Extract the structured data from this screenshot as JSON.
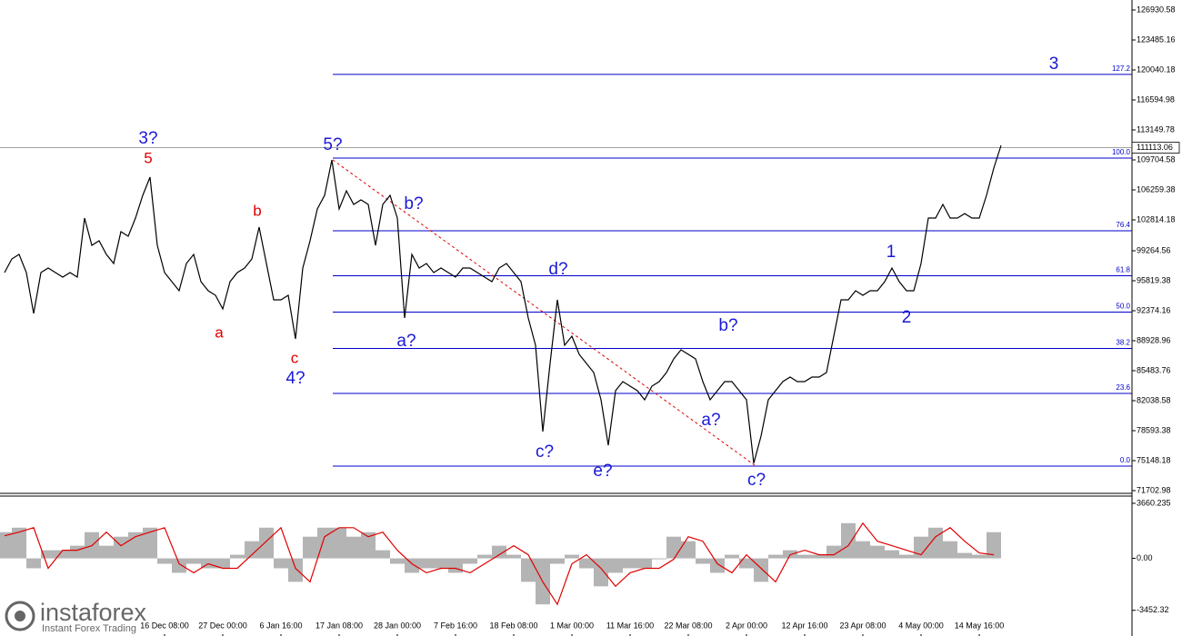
{
  "chart_data": [
    {
      "type": "line",
      "categories": [
        null,
        null,
        null,
        null,
        null,
        null,
        null,
        null,
        null,
        null,
        null,
        null,
        null,
        null,
        null,
        null,
        null,
        null,
        null,
        null,
        null,
        null,
        "16 Dec 08:00",
        null,
        null,
        null,
        null,
        null,
        null,
        null,
        "27 Dec 00:00",
        null,
        null,
        null,
        null,
        null,
        null,
        null,
        "6 Jan 16:00",
        null,
        null,
        null,
        null,
        null,
        null,
        null,
        "17 Jan 08:00",
        null,
        null,
        null,
        null,
        null,
        null,
        null,
        "28 Jan 00:00",
        null,
        null,
        null,
        null,
        null,
        null,
        null,
        "7 Feb 16:00",
        null,
        null,
        null,
        null,
        null,
        null,
        null,
        "18 Feb 08:00",
        null,
        null,
        null,
        null,
        null,
        null,
        null,
        "1 Mar 00:00",
        null,
        null,
        null,
        null,
        null,
        null,
        null,
        "11 Mar 16:00",
        null,
        null,
        null,
        null,
        null,
        null,
        null,
        "22 Mar 08:00",
        null,
        null,
        null,
        null,
        null,
        null,
        null,
        "2 Apr 00:00",
        null,
        null,
        null,
        null,
        null,
        null,
        null,
        "12 Apr 16:00",
        null,
        null,
        null,
        null,
        null,
        null,
        null,
        "23 Apr 08:00",
        null,
        null,
        null,
        null,
        null,
        null,
        null,
        "4 May 00:00",
        null,
        null,
        null,
        null,
        null,
        null,
        null,
        "14 May 16:00",
        null,
        null,
        null
      ],
      "values": [
        96760,
        98330,
        98850,
        96760,
        92060,
        96760,
        97280,
        96760,
        96240,
        96760,
        96240,
        103020,
        99890,
        100410,
        98850,
        97800,
        101460,
        100940,
        103020,
        105630,
        107720,
        99890,
        96760,
        95720,
        94670,
        97800,
        98850,
        95720,
        94670,
        94150,
        92580,
        95720,
        96760,
        97280,
        98330,
        101980,
        97800,
        93630,
        93630,
        94150,
        89140,
        97280,
        100410,
        104070,
        105630,
        109700,
        104070,
        106160,
        104590,
        105110,
        104590,
        99890,
        104590,
        105630,
        103020,
        91540,
        98850,
        97280,
        97800,
        96760,
        97280,
        96760,
        96240,
        97280,
        97280,
        96760,
        96240,
        95720,
        97280,
        97800,
        96760,
        95720,
        91540,
        88410,
        78490,
        86320,
        93630,
        88410,
        89450,
        87360,
        86320,
        85280,
        82140,
        76920,
        83190,
        84230,
        83710,
        83190,
        82140,
        83710,
        84230,
        85280,
        86840,
        87890,
        87360,
        86840,
        84230,
        82140,
        83190,
        84230,
        84230,
        83190,
        82140,
        74860,
        77970,
        82140,
        83190,
        84230,
        84750,
        84230,
        84230,
        84750,
        84750,
        85280,
        89450,
        93630,
        93630,
        94670,
        94150,
        94670,
        94670,
        95720,
        97280,
        95720,
        94670,
        94670,
        97800,
        103020,
        103020,
        104590,
        103020,
        103020,
        103540,
        103020,
        103020,
        105630,
        108770,
        111380
      ],
      "color": "#000000",
      "ylim": [
        71390,
        128080
      ],
      "yticks": [
        126930.58,
        123485.16,
        120040.18,
        116594.98,
        113149.78,
        109704.58,
        106259.38,
        102814.18,
        99264.56,
        95819.38,
        92374.16,
        88928.96,
        85483.76,
        82038.58,
        78593.38,
        75148.18,
        71702.98
      ],
      "current_price": 111113.06,
      "fib_color": "#0000cc",
      "fib_levels": [
        {
          "label": "127.2",
          "value": 119538
        },
        {
          "label": "100.0",
          "value": 109913
        },
        {
          "label": "76.4",
          "value": 101561
        },
        {
          "label": "61.8",
          "value": 96394
        },
        {
          "label": "50.0",
          "value": 92218
        },
        {
          "label": "38.2",
          "value": 88041
        },
        {
          "label": "23.6",
          "value": 82874
        },
        {
          "label": "0.0",
          "value": 74522
        }
      ],
      "annotations": [
        {
          "text": "3?",
          "color": "#1a1ad6"
        },
        {
          "text": "5",
          "color": "#e00000"
        },
        {
          "text": "5?",
          "color": "#1a1ad6"
        },
        {
          "text": "b",
          "color": "#e00000"
        },
        {
          "text": "a",
          "color": "#e00000"
        },
        {
          "text": "c",
          "color": "#e00000"
        },
        {
          "text": "4?",
          "color": "#1a1ad6"
        },
        {
          "text": "b?",
          "color": "#1a1ad6"
        },
        {
          "text": "a?",
          "color": "#1a1ad6"
        },
        {
          "text": "d?",
          "color": "#1a1ad6"
        },
        {
          "text": "c?",
          "color": "#1a1ad6"
        },
        {
          "text": "e?",
          "color": "#1a1ad6"
        },
        {
          "text": "b?",
          "color": "#1a1ad6"
        },
        {
          "text": "a?",
          "color": "#1a1ad6"
        },
        {
          "text": "c?",
          "color": "#1a1ad6"
        },
        {
          "text": "1",
          "color": "#1a1ad6"
        },
        {
          "text": "2",
          "color": "#1a1ad6"
        },
        {
          "text": "3",
          "color": "#1a1ad6"
        }
      ],
      "grid": false
    },
    {
      "type": "macd",
      "values": [
        1740,
        2040,
        -660,
        540,
        540,
        840,
        1740,
        840,
        1440,
        1740,
        2040,
        -360,
        -960,
        -360,
        -660,
        -660,
        240,
        1140,
        2040,
        -660,
        -1560,
        1440,
        2040,
        2040,
        1440,
        1740,
        540,
        -360,
        -960,
        -660,
        -660,
        -960,
        -360,
        240,
        840,
        240,
        -1560,
        -3060,
        -360,
        240,
        -660,
        -1860,
        -960,
        -660,
        -660,
        -60,
        1440,
        1140,
        -360,
        -960,
        240,
        -660,
        -1560,
        240,
        540,
        240,
        240,
        840,
        2340,
        1140,
        840,
        540,
        240,
        1440,
        2040,
        1140,
        360,
        240,
        1740
      ],
      "signal": [
        1500,
        1740,
        2040,
        -660,
        540,
        540,
        840,
        1740,
        840,
        1440,
        1740,
        2040,
        -360,
        -960,
        -360,
        -660,
        -660,
        240,
        1140,
        2040,
        -660,
        -1560,
        1440,
        2040,
        2040,
        1440,
        1740,
        540,
        -360,
        -960,
        -660,
        -660,
        -960,
        -360,
        240,
        840,
        240,
        -1560,
        -3060,
        -360,
        240,
        -660,
        -1860,
        -960,
        -660,
        -660,
        -60,
        1440,
        1140,
        -360,
        -960,
        240,
        -660,
        -1560,
        240,
        540,
        240,
        240,
        840,
        2340,
        1140,
        840,
        540,
        240,
        1440,
        2040,
        1140,
        360,
        240
      ],
      "color": "#b4b4b4",
      "signal_color": "#e00000",
      "ylim": [
        -5040,
        4140
      ],
      "yticks": [
        3660.235,
        {
          "value": 0,
          "label": "0.00"
        },
        -3452.32
      ]
    }
  ],
  "brand": {
    "name": "instaforex",
    "tagline": "Instant Forex Trading"
  }
}
